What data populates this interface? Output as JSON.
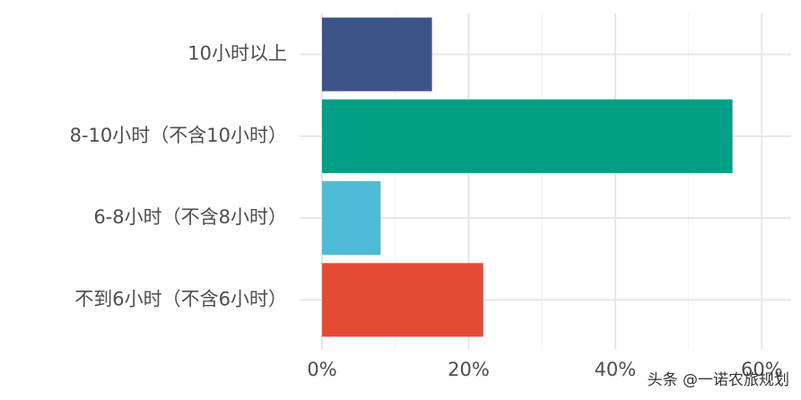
{
  "chart_data": {
    "type": "barh",
    "categories": [
      "10小时以上",
      "8-10小时（不含10小时）",
      "6-8小时（不含8小时）",
      "不到6小时（不含6小时）"
    ],
    "values": [
      15,
      56,
      8,
      22
    ],
    "colors": [
      "#3c5488",
      "#00a087",
      "#4dbbd5",
      "#e64b35"
    ],
    "xlim": [
      0,
      64
    ],
    "xticks": [
      {
        "value": 0,
        "label": "0%"
      },
      {
        "value": 20,
        "label": "20%"
      },
      {
        "value": 40,
        "label": "40%"
      },
      {
        "value": 60,
        "label": "60%"
      }
    ],
    "minor_xticks": [
      10,
      30,
      50
    ],
    "grid": true,
    "watermark": "头条 @一诺农旅规划"
  }
}
